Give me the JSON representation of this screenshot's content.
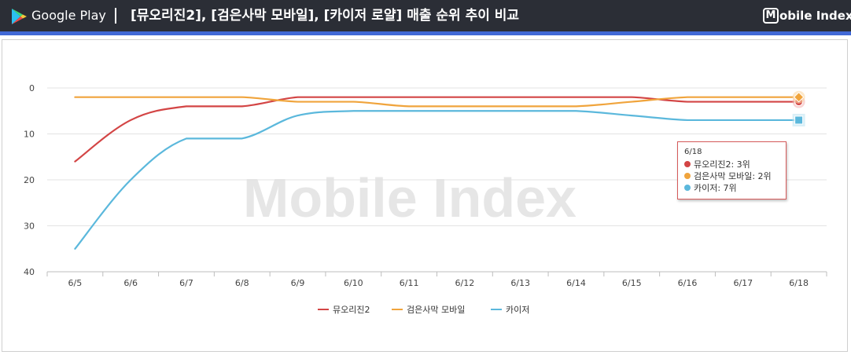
{
  "header": {
    "store_name": "Google Play",
    "title": "[뮤오리진2], [검은사막 모바일], [카이저 로얄]  매출 순위 추이 비교",
    "brand_box": "M",
    "brand_text": "obile Index"
  },
  "watermark": "Mobile Index",
  "colors": {
    "header_bg": "#2b2e36",
    "stripe": "#4169d6",
    "series": [
      "#d34545",
      "#f0a43c",
      "#5bb8dc"
    ]
  },
  "chart_data": {
    "type": "line",
    "title": "[뮤오리진2], [검은사막 모바일], [카이저 로얄]  매출 순위 추이 비교",
    "categories": [
      "6/5",
      "6/6",
      "6/7",
      "6/8",
      "6/9",
      "6/10",
      "6/11",
      "6/12",
      "6/13",
      "6/14",
      "6/15",
      "6/16",
      "6/17",
      "6/18"
    ],
    "y_ticks": [
      "0",
      "10",
      "20",
      "30",
      "40"
    ],
    "ylim": [
      0,
      40
    ],
    "y_reversed": true,
    "grid": "horizontal",
    "legend_position": "bottom",
    "series": [
      {
        "name": "뮤오리진2",
        "color": "#d34545",
        "values": [
          16,
          7,
          4,
          4,
          2,
          2,
          2,
          2,
          2,
          2,
          2,
          3,
          3,
          3
        ]
      },
      {
        "name": "검은사막 모바일",
        "color": "#f0a43c",
        "values": [
          2,
          2,
          2,
          2,
          3,
          3,
          4,
          4,
          4,
          4,
          3,
          2,
          2,
          2
        ]
      },
      {
        "name": "카이저",
        "color": "#5bb8dc",
        "values": [
          35,
          20,
          11,
          11,
          6,
          5,
          5,
          5,
          5,
          5,
          6,
          7,
          7,
          7
        ]
      }
    ]
  },
  "tooltip": {
    "date": "6/18",
    "rows": [
      {
        "label": "뮤오리진2: 3위",
        "color": "#d34545"
      },
      {
        "label": "검은사막 모바일: 2위",
        "color": "#f0a43c"
      },
      {
        "label": "카이저: 7위",
        "color": "#5bb8dc"
      }
    ]
  }
}
